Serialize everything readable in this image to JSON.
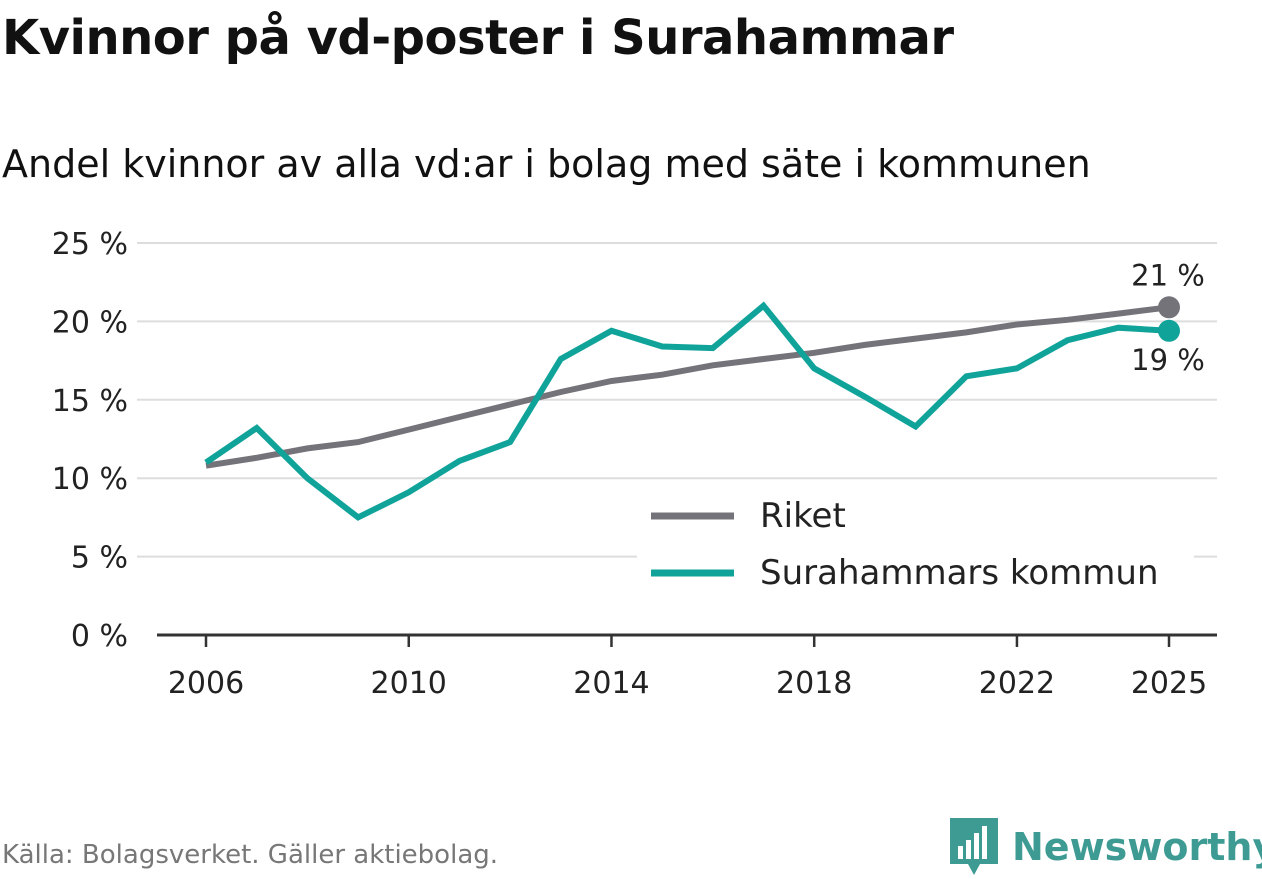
{
  "title": "Kvinnor på vd-poster i Surahammar",
  "subtitle": "Andel kvinnor av alla vd:ar i bolag med säte i kommunen",
  "source": "Källa: Bolagsverket. Gäller aktiebolag.",
  "brand": "Newsworthy",
  "colors": {
    "riket": "#74737a",
    "surahammar": "#10a39a",
    "grid": "#dddddd",
    "axis": "#333333",
    "brand": "#3e9b94"
  },
  "chart_data": {
    "type": "line",
    "title": "Kvinnor på vd-poster i Surahammar",
    "subtitle": "Andel kvinnor av alla vd:ar i bolag med säte i kommunen",
    "xlabel": "",
    "ylabel": "",
    "ylim": [
      0,
      25
    ],
    "xlim": [
      2006,
      2025
    ],
    "y_ticks": [
      0,
      5,
      10,
      15,
      20,
      25
    ],
    "y_tick_labels": [
      "0 %",
      "5 %",
      "10 %",
      "15 %",
      "20 %",
      "25 %"
    ],
    "x_ticks": [
      2006,
      2010,
      2014,
      2018,
      2022,
      2025
    ],
    "x_tick_labels": [
      "2006",
      "2010",
      "2014",
      "2018",
      "2022",
      "2025"
    ],
    "grid": true,
    "legend_position": "bottom-right",
    "x": [
      2006,
      2007,
      2008,
      2009,
      2010,
      2011,
      2012,
      2013,
      2014,
      2015,
      2016,
      2017,
      2018,
      2019,
      2020,
      2021,
      2022,
      2023,
      2024,
      2025
    ],
    "series": [
      {
        "name": "Riket",
        "key": "riket",
        "values": [
          10.8,
          11.3,
          11.9,
          12.3,
          13.1,
          13.9,
          14.7,
          15.5,
          16.2,
          16.6,
          17.2,
          17.6,
          18.0,
          18.5,
          18.9,
          19.3,
          19.8,
          20.1,
          20.5,
          20.9
        ],
        "end_label": "21 %"
      },
      {
        "name": "Surahammars kommun",
        "key": "surahammar",
        "values": [
          11.0,
          13.2,
          10.0,
          7.5,
          9.1,
          11.1,
          12.3,
          17.6,
          19.4,
          18.4,
          18.3,
          21.0,
          17.0,
          15.2,
          13.3,
          16.5,
          17.0,
          18.8,
          19.6,
          19.4
        ],
        "end_label": "19 %"
      }
    ]
  }
}
